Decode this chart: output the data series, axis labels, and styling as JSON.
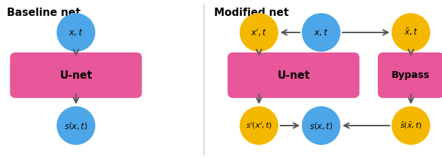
{
  "bg_color": "#ffffff",
  "pink_color": "#e8579a",
  "blue_color": "#4da6e8",
  "gold_color": "#f5b800",
  "arrow_color": "#555555",
  "text_color": "#000000",
  "title_left": "Baseline net",
  "title_right": "Modified net",
  "figsize": [
    6.4,
    2.29
  ],
  "dpi": 100
}
